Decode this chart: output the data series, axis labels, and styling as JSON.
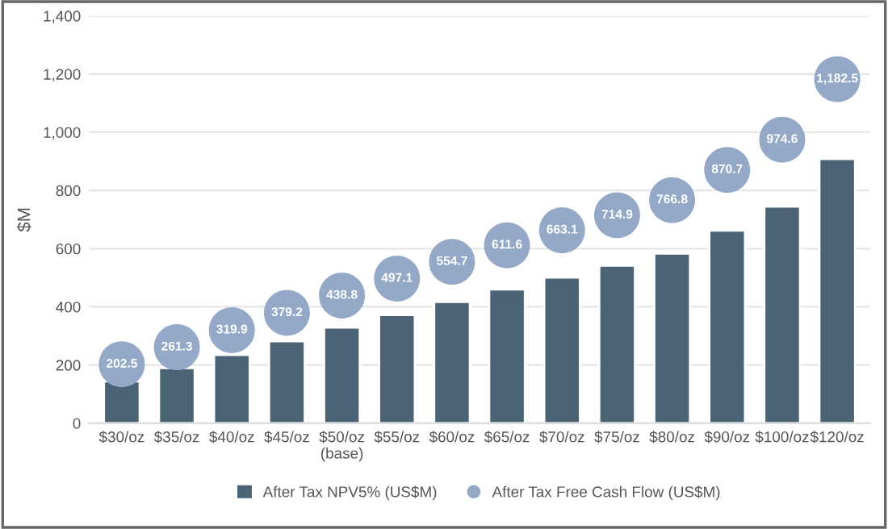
{
  "chart_data": {
    "type": "bar",
    "ylabel": "$M",
    "categories": [
      "$30/oz",
      "$35/oz",
      "$40/oz",
      "$45/oz",
      "$50/oz\n(base)",
      "$55/oz",
      "$60/oz",
      "$65/oz",
      "$70/oz",
      "$75/oz",
      "$80/oz",
      "$90/oz",
      "$100/oz",
      "$120/oz"
    ],
    "series": [
      {
        "name": "After Tax NPV5% (US$M)",
        "color": "#4a6375",
        "values": [
          144,
          190,
          235,
          282,
          329,
          372,
          417,
          460,
          501,
          542,
          583,
          662,
          745,
          908
        ]
      },
      {
        "name": "After Tax Free Cash Flow (US$M)",
        "type": "scatter",
        "color": "#94a8c8",
        "values": [
          202.5,
          261.3,
          319.9,
          379.2,
          438.8,
          497.1,
          554.7,
          611.6,
          663.1,
          714.9,
          766.8,
          870.7,
          974.6,
          1182.5
        ],
        "value_labels": [
          "202.5",
          "261.3",
          "319.9",
          "379.2",
          "438.8",
          "497.1",
          "554.7",
          "611.6",
          "663.1",
          "714.9",
          "766.8",
          "870.7",
          "974.6",
          "1,182.5"
        ]
      }
    ],
    "ylim": [
      0,
      1400
    ],
    "yticks": [
      0,
      {
        "value": 200,
        "label": "200"
      },
      {
        "value": 400,
        "label": "400"
      },
      {
        "value": 600,
        "label": "600"
      },
      {
        "value": 800,
        "label": "800"
      },
      {
        "value": 1000,
        "label": "1,000"
      },
      {
        "value": 1200,
        "label": "1,200"
      },
      {
        "value": 1400,
        "label": "1,400"
      }
    ],
    "grid": "y",
    "legend": "bottom",
    "marker": "circle"
  }
}
